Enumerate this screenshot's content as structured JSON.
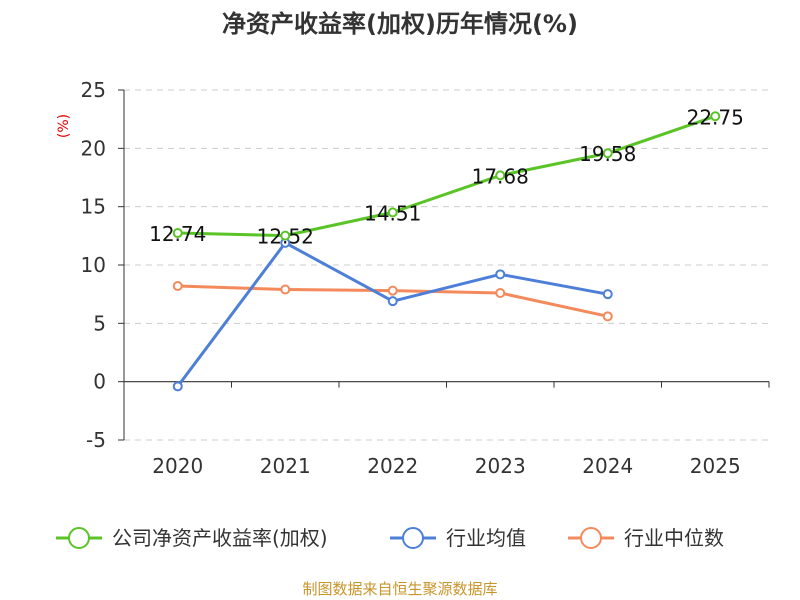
{
  "title": "净资产收益率(加权)历年情况(%)",
  "source": "制图数据来自恒生聚源数据库",
  "chart_data": {
    "type": "line",
    "title": "净资产收益率(加权)历年情况(%)",
    "ylabel": "(%)",
    "xlabel": "",
    "categories": [
      "2020",
      "2021",
      "2022",
      "2023",
      "2024",
      "2025"
    ],
    "ylim": [
      -5,
      25
    ],
    "yticks": [
      "-5",
      "0",
      "5",
      "10",
      "15",
      "20",
      "25"
    ],
    "grid": true,
    "legend_position": "bottom",
    "series": [
      {
        "name": "公司净资产收益率(加权)",
        "color": "#5ac427",
        "values": [
          12.74,
          12.52,
          14.51,
          17.68,
          19.58,
          22.75
        ],
        "labels": [
          "12.74",
          "12.52",
          "14.51",
          "17.68",
          "19.58",
          "22.75"
        ]
      },
      {
        "name": "行业均值",
        "color": "#4d7fd9",
        "values": [
          -0.4,
          11.9,
          6.9,
          9.2,
          7.5,
          null
        ]
      },
      {
        "name": "行业中位数",
        "color": "#f4895c",
        "values": [
          8.2,
          7.9,
          7.8,
          7.6,
          5.6,
          null
        ]
      }
    ]
  }
}
